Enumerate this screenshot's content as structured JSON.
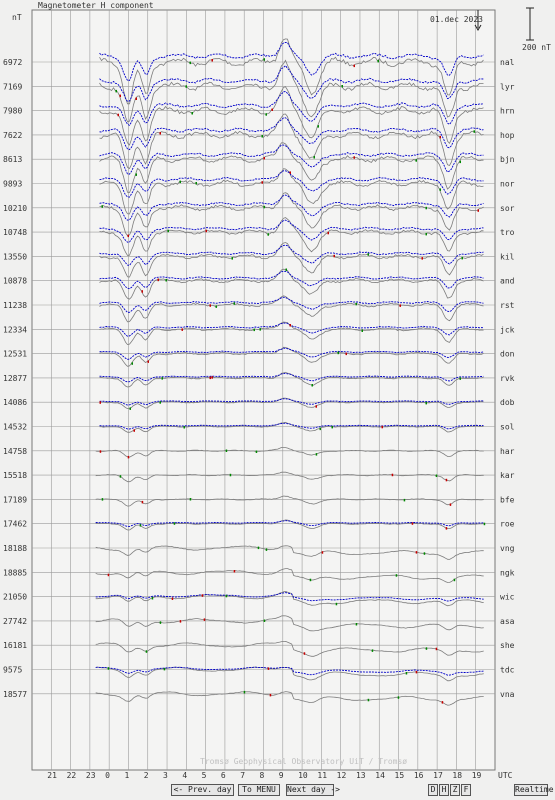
{
  "header": {
    "title": "Magnetometer H component",
    "unit": "nT",
    "date": "01.dec 2023",
    "scale_label": "200 nT"
  },
  "chart_data": {
    "type": "line",
    "title": "Magnetometer H component",
    "ylabel": "nT",
    "xlabel": "UTC",
    "x_ticks": [
      "21",
      "22",
      "23",
      "0",
      "1",
      "2",
      "3",
      "4",
      "5",
      "6",
      "7",
      "8",
      "9",
      "10",
      "11",
      "12",
      "13",
      "14",
      "15",
      "16",
      "17",
      "18",
      "19"
    ],
    "x_unit": "UTC",
    "grid": true,
    "scale_bar_nT": 200,
    "stations": [
      {
        "code": "nal",
        "baseline": "6972"
      },
      {
        "code": "lyr",
        "baseline": "7169"
      },
      {
        "code": "hrn",
        "baseline": "7980"
      },
      {
        "code": "hop",
        "baseline": "7622"
      },
      {
        "code": "bjn",
        "baseline": "8613"
      },
      {
        "code": "nor",
        "baseline": "9893"
      },
      {
        "code": "sor",
        "baseline": "10210"
      },
      {
        "code": "tro",
        "baseline": "10748"
      },
      {
        "code": "kil",
        "baseline": "13550"
      },
      {
        "code": "and",
        "baseline": "10878"
      },
      {
        "code": "rst",
        "baseline": "11238"
      },
      {
        "code": "jck",
        "baseline": "12334"
      },
      {
        "code": "don",
        "baseline": "12531"
      },
      {
        "code": "rvk",
        "baseline": "12877"
      },
      {
        "code": "dob",
        "baseline": "14086"
      },
      {
        "code": "sol",
        "baseline": "14532"
      },
      {
        "code": "har",
        "baseline": "14758"
      },
      {
        "code": "kar",
        "baseline": "15518"
      },
      {
        "code": "bfe",
        "baseline": "17189"
      },
      {
        "code": "roe",
        "baseline": "17462"
      },
      {
        "code": "vng",
        "baseline": "18188"
      },
      {
        "code": "ngk",
        "baseline": "18885"
      },
      {
        "code": "wic",
        "baseline": "21050"
      },
      {
        "code": "asa",
        "baseline": "27742"
      },
      {
        "code": "she",
        "baseline": "16181"
      },
      {
        "code": "tdc",
        "baseline": "9575"
      },
      {
        "code": "vna",
        "baseline": "18577"
      }
    ]
  },
  "watermark": "Tromsø Geophysical Observatory   UiT / Tromsø",
  "nav": {
    "prev": "<- Prev. day",
    "menu": "To MENU",
    "next": "Next day ->",
    "components": [
      "D",
      "H",
      "Z",
      "F"
    ],
    "realtime": "Realtime"
  },
  "colors": {
    "trace_gray": "#7c7c7c",
    "trace_blue": "#0000c8",
    "trace_red": "#c80000",
    "trace_green": "#008800",
    "grid": "#9a9a9a"
  }
}
